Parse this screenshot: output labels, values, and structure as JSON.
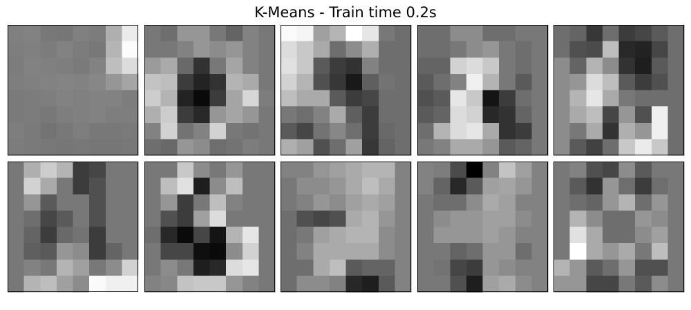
{
  "title": "K-Means - Train time 0.2s",
  "chart_data": {
    "type": "heatmap",
    "title": "K-Means - Train time 0.2s",
    "colormap": "gray",
    "grid": false,
    "axes": "hidden",
    "layout": {
      "rows": 2,
      "columns": 5
    },
    "panels": [
      {
        "index": 0,
        "values": [
          [
            128,
            130,
            120,
            118,
            128,
            124,
            175,
            235
          ],
          [
            126,
            128,
            124,
            130,
            124,
            120,
            180,
            252
          ],
          [
            124,
            130,
            128,
            126,
            122,
            130,
            190,
            220
          ],
          [
            126,
            128,
            130,
            132,
            130,
            135,
            150,
            165
          ],
          [
            122,
            124,
            126,
            130,
            128,
            130,
            130,
            125
          ],
          [
            122,
            124,
            120,
            126,
            128,
            130,
            126,
            126
          ],
          [
            126,
            122,
            115,
            120,
            126,
            120,
            120,
            122
          ],
          [
            124,
            122,
            120,
            118,
            120,
            118,
            118,
            120
          ]
        ]
      },
      {
        "index": 1,
        "values": [
          [
            120,
            110,
            150,
            150,
            120,
            100,
            130,
            120
          ],
          [
            120,
            120,
            130,
            150,
            140,
            150,
            130,
            120
          ],
          [
            155,
            170,
            105,
            50,
            120,
            165,
            130,
            120
          ],
          [
            195,
            190,
            60,
            35,
            50,
            180,
            170,
            120
          ],
          [
            205,
            180,
            35,
            10,
            60,
            165,
            215,
            125
          ],
          [
            175,
            205,
            60,
            40,
            150,
            165,
            150,
            120
          ],
          [
            130,
            210,
            115,
            130,
            210,
            120,
            115,
            120
          ],
          [
            110,
            105,
            150,
            140,
            110,
            115,
            125,
            120
          ]
        ]
      },
      {
        "index": 2,
        "values": [
          [
            250,
            245,
            160,
            180,
            255,
            230,
            120,
            110
          ],
          [
            220,
            200,
            170,
            110,
            140,
            175,
            110,
            110
          ],
          [
            225,
            200,
            90,
            60,
            50,
            130,
            110,
            110
          ],
          [
            210,
            180,
            80,
            55,
            25,
            95,
            115,
            110
          ],
          [
            190,
            170,
            170,
            90,
            60,
            70,
            110,
            110
          ],
          [
            120,
            110,
            130,
            170,
            95,
            60,
            110,
            110
          ],
          [
            90,
            70,
            115,
            135,
            110,
            60,
            105,
            110
          ],
          [
            175,
            160,
            80,
            110,
            160,
            55,
            100,
            110
          ]
        ]
      },
      {
        "index": 3,
        "values": [
          [
            110,
            110,
            140,
            140,
            110,
            110,
            120,
            120
          ],
          [
            110,
            110,
            120,
            140,
            150,
            120,
            110,
            120
          ],
          [
            100,
            100,
            210,
            220,
            200,
            120,
            110,
            120
          ],
          [
            90,
            110,
            130,
            240,
            180,
            120,
            90,
            120
          ],
          [
            80,
            90,
            230,
            200,
            20,
            60,
            110,
            120
          ],
          [
            90,
            100,
            220,
            210,
            40,
            50,
            100,
            120
          ],
          [
            110,
            180,
            220,
            230,
            170,
            50,
            60,
            120
          ],
          [
            120,
            130,
            170,
            170,
            150,
            90,
            100,
            120
          ]
        ]
      },
      {
        "index": 4,
        "values": [
          [
            110,
            100,
            55,
            110,
            60,
            70,
            90,
            110
          ],
          [
            110,
            80,
            75,
            190,
            40,
            35,
            70,
            110
          ],
          [
            140,
            100,
            180,
            140,
            50,
            30,
            90,
            110
          ],
          [
            140,
            150,
            220,
            190,
            90,
            60,
            80,
            110
          ],
          [
            140,
            180,
            230,
            170,
            120,
            110,
            110,
            110
          ],
          [
            140,
            170,
            190,
            70,
            150,
            80,
            240,
            110
          ],
          [
            140,
            120,
            170,
            50,
            175,
            150,
            240,
            110
          ],
          [
            140,
            90,
            65,
            110,
            200,
            235,
            200,
            110
          ]
        ]
      },
      {
        "index": 5,
        "values": [
          [
            120,
            175,
            205,
            180,
            60,
            70,
            120,
            120
          ],
          [
            120,
            210,
            170,
            120,
            60,
            80,
            120,
            120
          ],
          [
            120,
            150,
            90,
            120,
            120,
            80,
            120,
            120
          ],
          [
            120,
            110,
            70,
            90,
            120,
            80,
            120,
            120
          ],
          [
            120,
            100,
            60,
            105,
            115,
            60,
            120,
            120
          ],
          [
            120,
            95,
            90,
            150,
            140,
            60,
            100,
            120
          ],
          [
            120,
            130,
            120,
            180,
            160,
            120,
            140,
            210
          ],
          [
            120,
            180,
            190,
            160,
            140,
            250,
            240,
            240
          ]
        ]
      },
      {
        "index": 6,
        "values": [
          [
            120,
            120,
            200,
            140,
            120,
            150,
            120,
            120
          ],
          [
            120,
            190,
            225,
            30,
            140,
            190,
            120,
            120
          ],
          [
            120,
            150,
            60,
            120,
            190,
            130,
            120,
            120
          ],
          [
            120,
            80,
            60,
            160,
            220,
            120,
            120,
            120
          ],
          [
            110,
            40,
            10,
            70,
            20,
            180,
            230,
            120
          ],
          [
            120,
            70,
            70,
            15,
            10,
            140,
            210,
            120
          ],
          [
            120,
            140,
            120,
            30,
            40,
            220,
            230,
            120
          ],
          [
            130,
            135,
            195,
            200,
            200,
            150,
            130,
            120
          ]
        ]
      },
      {
        "index": 7,
        "values": [
          [
            130,
            130,
            150,
            160,
            170,
            180,
            180,
            130
          ],
          [
            120,
            140,
            140,
            150,
            170,
            190,
            170,
            130
          ],
          [
            120,
            130,
            150,
            140,
            160,
            170,
            160,
            130
          ],
          [
            110,
            80,
            70,
            80,
            170,
            180,
            150,
            130
          ],
          [
            110,
            120,
            160,
            170,
            180,
            180,
            140,
            130
          ],
          [
            110,
            130,
            170,
            170,
            170,
            170,
            140,
            130
          ],
          [
            110,
            110,
            170,
            190,
            90,
            100,
            100,
            130
          ],
          [
            110,
            140,
            140,
            130,
            40,
            30,
            90,
            130
          ]
        ]
      },
      {
        "index": 8,
        "values": [
          [
            130,
            125,
            75,
            0,
            130,
            195,
            160,
            130
          ],
          [
            130,
            100,
            40,
            90,
            160,
            165,
            150,
            130
          ],
          [
            120,
            110,
            110,
            140,
            170,
            160,
            130,
            130
          ],
          [
            120,
            140,
            150,
            150,
            160,
            160,
            140,
            130
          ],
          [
            120,
            150,
            150,
            150,
            160,
            150,
            130,
            130
          ],
          [
            120,
            120,
            100,
            110,
            150,
            150,
            110,
            130
          ],
          [
            120,
            115,
            70,
            60,
            150,
            140,
            130,
            130
          ],
          [
            120,
            120,
            80,
            30,
            160,
            170,
            140,
            130
          ]
        ]
      },
      {
        "index": 9,
        "values": [
          [
            120,
            130,
            80,
            70,
            140,
            90,
            120,
            120
          ],
          [
            120,
            90,
            50,
            150,
            110,
            60,
            110,
            120
          ],
          [
            120,
            110,
            100,
            150,
            180,
            110,
            150,
            120
          ],
          [
            120,
            180,
            140,
            110,
            110,
            150,
            140,
            120
          ],
          [
            120,
            225,
            170,
            110,
            110,
            140,
            160,
            120
          ],
          [
            120,
            255,
            170,
            150,
            170,
            120,
            190,
            120
          ],
          [
            180,
            150,
            90,
            110,
            150,
            80,
            80,
            120
          ],
          [
            150,
            150,
            70,
            70,
            120,
            90,
            140,
            120
          ]
        ]
      }
    ]
  }
}
